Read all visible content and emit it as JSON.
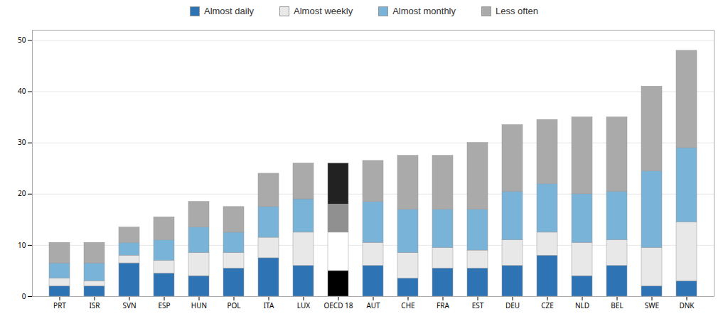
{
  "chart_data": {
    "type": "bar",
    "stacked": true,
    "categories": [
      "PRT",
      "ISR",
      "SVN",
      "ESP",
      "HUN",
      "POL",
      "ITA",
      "LUX",
      "OECD 18",
      "AUT",
      "CHE",
      "FRA",
      "EST",
      "DEU",
      "CZE",
      "NLD",
      "BEL",
      "SWE",
      "DNK"
    ],
    "series": [
      {
        "name": "Almost daily",
        "color": "#2E74B5",
        "colors": [
          "#2E74B5",
          "#2E74B5",
          "#2E74B5",
          "#2E74B5",
          "#2E74B5",
          "#2E74B5",
          "#2E74B5",
          "#2E74B5",
          "#000000",
          "#2E74B5",
          "#2E74B5",
          "#2E74B5",
          "#2E74B5",
          "#2E74B5",
          "#2E74B5",
          "#2E74B5",
          "#2E74B5",
          "#2E74B5",
          "#2E74B5"
        ],
        "values": [
          2.0,
          2.0,
          6.5,
          4.5,
          4.0,
          5.5,
          7.5,
          6.0,
          5.0,
          6.0,
          3.5,
          5.5,
          5.5,
          6.0,
          8.0,
          4.0,
          6.0,
          2.0,
          3.0
        ]
      },
      {
        "name": "Almost weekly",
        "color": "#E8E8E8",
        "colors": [
          "#E8E8E8",
          "#E8E8E8",
          "#E8E8E8",
          "#E8E8E8",
          "#E8E8E8",
          "#E8E8E8",
          "#E8E8E8",
          "#E8E8E8",
          "#ffffff",
          "#E8E8E8",
          "#E8E8E8",
          "#E8E8E8",
          "#E8E8E8",
          "#E8E8E8",
          "#E8E8E8",
          "#E8E8E8",
          "#E8E8E8",
          "#E8E8E8",
          "#E8E8E8"
        ],
        "values": [
          1.5,
          1.0,
          1.5,
          2.5,
          4.5,
          3.0,
          4.0,
          6.5,
          7.5,
          4.5,
          5.0,
          4.0,
          3.5,
          5.0,
          4.5,
          6.5,
          5.0,
          7.5,
          11.5
        ]
      },
      {
        "name": "Almost monthly",
        "color": "#7AB3D8",
        "colors": [
          "#7AB3D8",
          "#7AB3D8",
          "#7AB3D8",
          "#7AB3D8",
          "#7AB3D8",
          "#7AB3D8",
          "#7AB3D8",
          "#7AB3D8",
          "#909090",
          "#7AB3D8",
          "#7AB3D8",
          "#7AB3D8",
          "#7AB3D8",
          "#7AB3D8",
          "#7AB3D8",
          "#7AB3D8",
          "#7AB3D8",
          "#7AB3D8",
          "#7AB3D8"
        ],
        "values": [
          3.0,
          3.5,
          2.5,
          4.0,
          5.0,
          4.0,
          6.0,
          6.5,
          5.5,
          8.0,
          8.5,
          7.5,
          8.0,
          9.5,
          9.5,
          9.5,
          9.5,
          15.0,
          14.5
        ]
      },
      {
        "name": "Less often",
        "color": "#AAAAAA",
        "colors": [
          "#AAAAAA",
          "#AAAAAA",
          "#AAAAAA",
          "#AAAAAA",
          "#AAAAAA",
          "#AAAAAA",
          "#AAAAAA",
          "#AAAAAA",
          "#222222",
          "#AAAAAA",
          "#AAAAAA",
          "#AAAAAA",
          "#AAAAAA",
          "#AAAAAA",
          "#AAAAAA",
          "#AAAAAA",
          "#AAAAAA",
          "#AAAAAA",
          "#AAAAAA"
        ],
        "values": [
          4.0,
          4.0,
          3.0,
          4.5,
          5.0,
          5.0,
          6.5,
          7.0,
          8.0,
          8.0,
          10.5,
          10.5,
          13.0,
          13.0,
          12.5,
          15.0,
          14.5,
          16.5,
          19.0
        ]
      }
    ],
    "ylim": [
      0,
      52
    ],
    "yticks": [
      0,
      10,
      20,
      30,
      40,
      50
    ],
    "grid": true,
    "legend": "top"
  }
}
